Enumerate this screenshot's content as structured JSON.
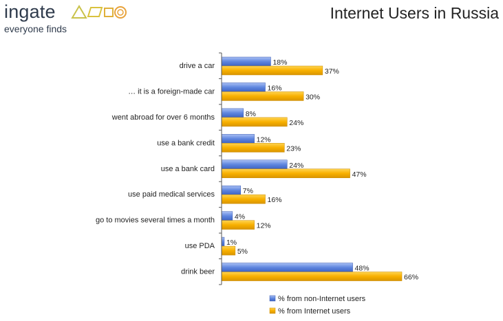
{
  "brand": {
    "name": "ingate",
    "tagline": "everyone finds",
    "logo_colors": [
      "#c9c24a",
      "#e8a23a"
    ]
  },
  "chart_data": {
    "type": "bar",
    "orientation": "horizontal",
    "title": "Internet Users in Russia",
    "categories": [
      "drive a car",
      "… it is a foreign-made car",
      "went abroad for over 6 months",
      "use a bank credit",
      "use a bank card",
      "use paid medical services",
      "go to movies several times a month",
      "use PDA",
      "drink beer"
    ],
    "series": [
      {
        "name": "% from non-Internet users",
        "color": "#6a8ee0",
        "values": [
          18,
          16,
          8,
          12,
          24,
          7,
          4,
          1,
          48
        ]
      },
      {
        "name": "% from Internet users",
        "color": "#f5b300",
        "values": [
          37,
          30,
          24,
          23,
          47,
          16,
          12,
          5,
          66
        ]
      }
    ],
    "value_suffix": "%",
    "xlim": [
      0,
      80
    ],
    "grid": false,
    "legend_position": "bottom"
  }
}
